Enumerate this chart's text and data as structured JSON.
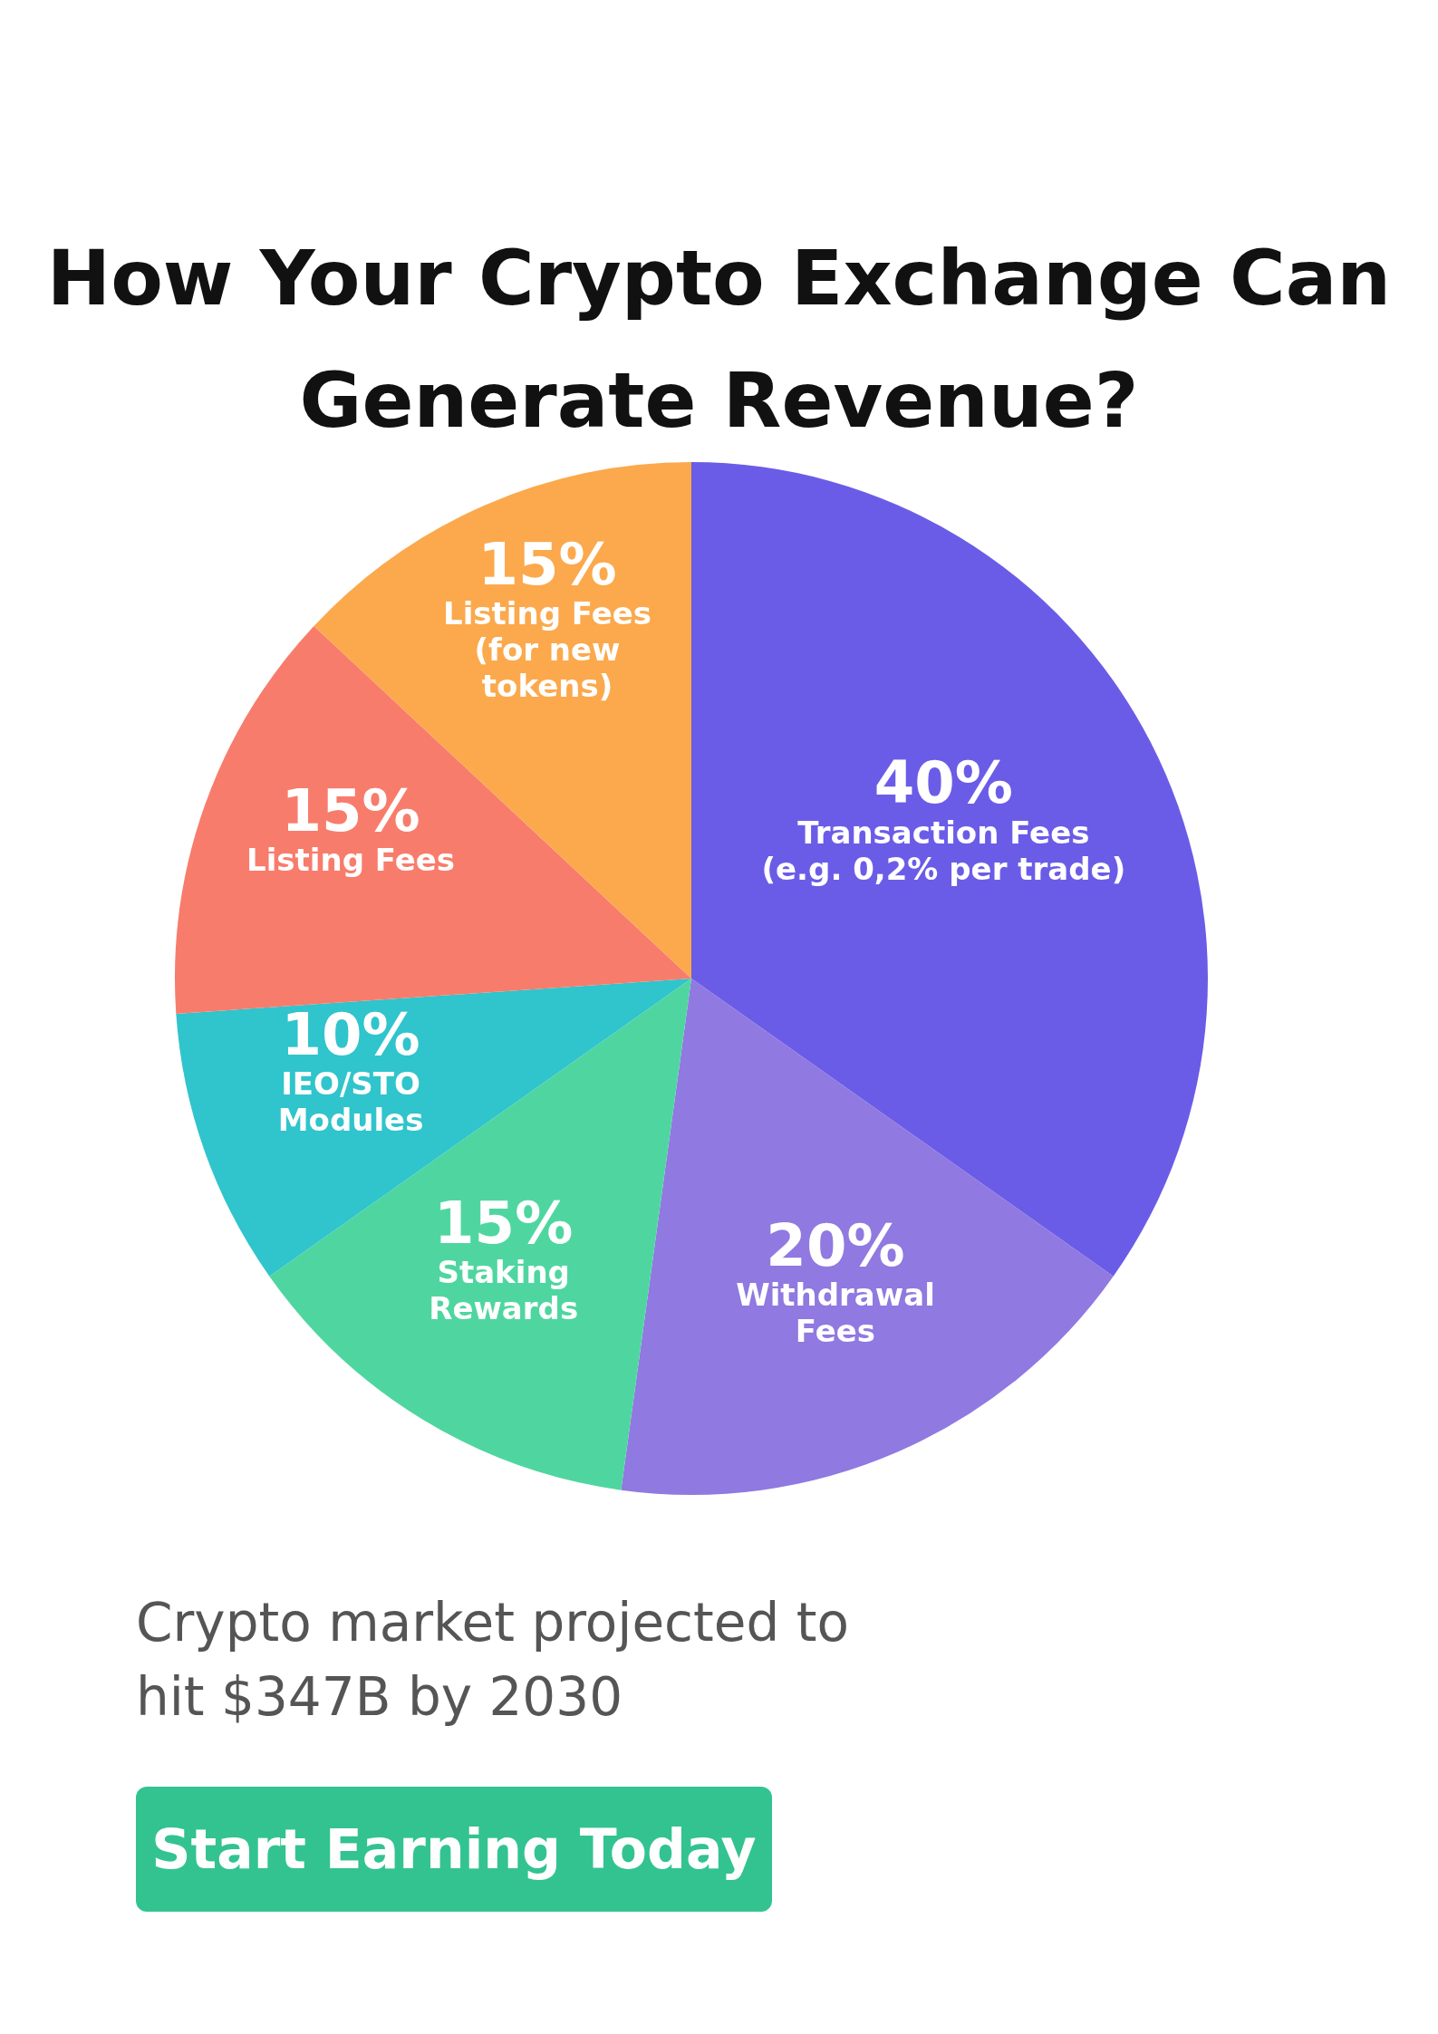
{
  "chart_data": {
    "type": "pie",
    "title": "How Your Crypto Exchange Can Generate Revenue?",
    "categories": [
      "Transaction Fees (e.g. 0,2% per trade)",
      "Withdrawal Fees",
      "Staking Rewards",
      "IEO/STO Modules",
      "Listing Fees",
      "Listing Fees (for new tokens)"
    ],
    "values": [
      40,
      20,
      15,
      10,
      15,
      15
    ],
    "value_labels": [
      "40%",
      "20%",
      "15%",
      "10%",
      "15%",
      "15%"
    ],
    "colors": [
      "#6b5ce7",
      "#9079e0",
      "#4fd6a0",
      "#30c4cc",
      "#f87c6c",
      "#fba94c"
    ],
    "legend": false,
    "annotations": [
      "Crypto market projected to hit $347B by 2030",
      "Start Earning Today"
    ]
  }
}
